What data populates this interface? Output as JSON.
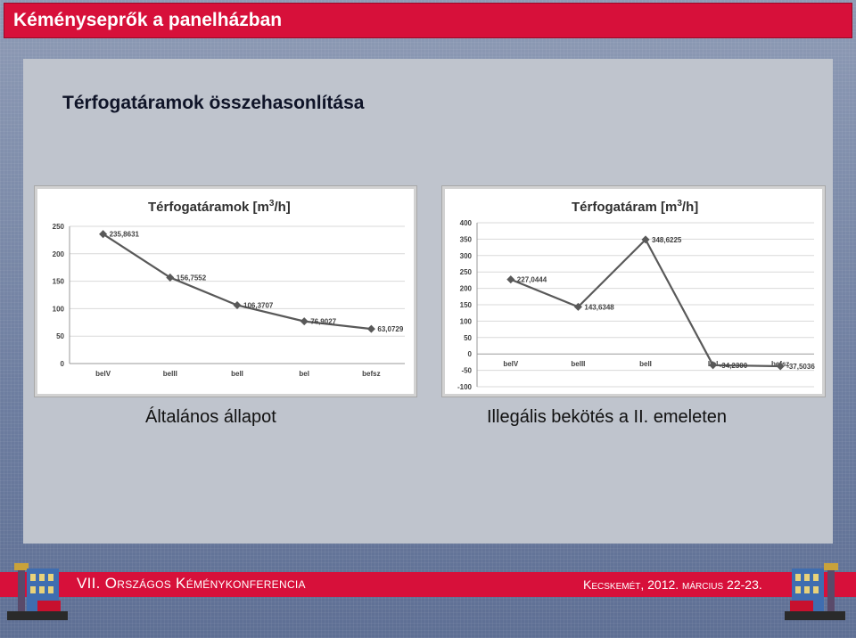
{
  "header": {
    "title": "Kéményseprők a panelházban"
  },
  "slide": {
    "title": "Térfogatáramok összehasonlítása",
    "caption_left": "Általános állapot",
    "caption_right": "Illegális bekötés a II. emeleten"
  },
  "footer": {
    "left": "VII. Országos Kéménykonferencia",
    "right": "Kecskemét, 2012. március 22-23."
  },
  "colors": {
    "accent": "#d7103a",
    "series": "#595959"
  },
  "chart_data": [
    {
      "type": "line",
      "title": "Térfogatáramok [m3/h]",
      "title_main": "Térfogatáramok [m",
      "title_sup": "3",
      "title_end": "/h]",
      "categories": [
        "belV",
        "belII",
        "belI",
        "bel",
        "befsz"
      ],
      "values": [
        235.8631,
        156.7552,
        106.3707,
        76.9027,
        63.0729
      ],
      "labels": [
        "235,8631",
        "156,7552",
        "106,3707",
        "76,9027",
        "63,0729"
      ],
      "ylim": [
        0,
        250
      ],
      "yticks": [
        0,
        50,
        100,
        150,
        200,
        250
      ],
      "grid": true
    },
    {
      "type": "line",
      "title": "Térfogatáram [m3/h]",
      "title_main": "Térfogatáram [m",
      "title_sup": "3",
      "title_end": "/h]",
      "categories": [
        "belV",
        "belII",
        "belI",
        "bel",
        "befsz"
      ],
      "values": [
        227.0444,
        143.6348,
        348.6225,
        -34.23,
        -37.5036
      ],
      "labels": [
        "227,0444",
        "143,6348",
        "348,6225",
        "-34,2300",
        "-37,5036"
      ],
      "ylim": [
        -100,
        400
      ],
      "yticks": [
        -100,
        -50,
        0,
        50,
        100,
        150,
        200,
        250,
        300,
        350,
        400
      ],
      "grid": true
    }
  ]
}
